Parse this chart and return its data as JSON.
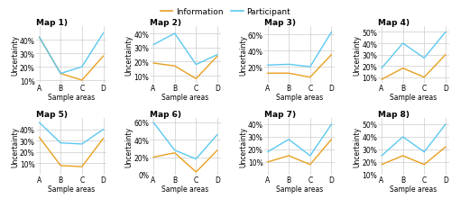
{
  "maps": [
    {
      "title": "Map 1)",
      "participant": [
        42,
        15,
        20,
        45
      ],
      "information": [
        42,
        15,
        10,
        28
      ],
      "ylim": [
        0.08,
        0.5
      ],
      "yticks": [
        0.1,
        0.2,
        0.3,
        0.4
      ]
    },
    {
      "title": "Map 2)",
      "participant": [
        32,
        40,
        18,
        25
      ],
      "information": [
        19,
        17,
        8,
        24
      ],
      "ylim": [
        0.05,
        0.45
      ],
      "yticks": [
        0.1,
        0.2,
        0.3,
        0.4
      ]
    },
    {
      "title": "Map 3)",
      "participant": [
        22,
        23,
        20,
        63
      ],
      "information": [
        12,
        12,
        7,
        35
      ],
      "ylim": [
        0.0,
        0.7
      ],
      "yticks": [
        0.2,
        0.4,
        0.6
      ]
    },
    {
      "title": "Map 4)",
      "participant": [
        18,
        40,
        27,
        50
      ],
      "information": [
        8,
        18,
        10,
        30
      ],
      "ylim": [
        0.05,
        0.55
      ],
      "yticks": [
        0.1,
        0.2,
        0.3,
        0.4,
        0.5
      ]
    },
    {
      "title": "Map 5)",
      "participant": [
        46,
        28,
        27,
        40
      ],
      "information": [
        33,
        8,
        7,
        32
      ],
      "ylim": [
        0.0,
        0.5
      ],
      "yticks": [
        0.1,
        0.2,
        0.3,
        0.4
      ]
    },
    {
      "title": "Map 6)",
      "participant": [
        60,
        28,
        18,
        46
      ],
      "information": [
        20,
        25,
        3,
        28
      ],
      "ylim": [
        0.0,
        0.65
      ],
      "yticks": [
        0.0,
        0.2,
        0.4,
        0.6
      ]
    },
    {
      "title": "Map 7)",
      "participant": [
        18,
        28,
        15,
        40
      ],
      "information": [
        10,
        15,
        8,
        28
      ],
      "ylim": [
        0.0,
        0.45
      ],
      "yticks": [
        0.1,
        0.2,
        0.3,
        0.4
      ]
    },
    {
      "title": "Map 8)",
      "participant": [
        25,
        40,
        28,
        50
      ],
      "information": [
        18,
        25,
        18,
        32
      ],
      "ylim": [
        0.1,
        0.55
      ],
      "yticks": [
        0.1,
        0.2,
        0.3,
        0.4,
        0.5
      ]
    }
  ],
  "x_labels": [
    "A",
    "B",
    "C",
    "D"
  ],
  "x_label": "Sample areas",
  "y_label": "Uncertainty",
  "info_color": "#E8A020",
  "part_color": "#5BC8F0",
  "legend_labels": [
    "Information",
    "Participant"
  ],
  "grid_color": "#CCCCCC",
  "font_size": 5.5,
  "title_font_size": 6.5,
  "legend_font_size": 6.5
}
